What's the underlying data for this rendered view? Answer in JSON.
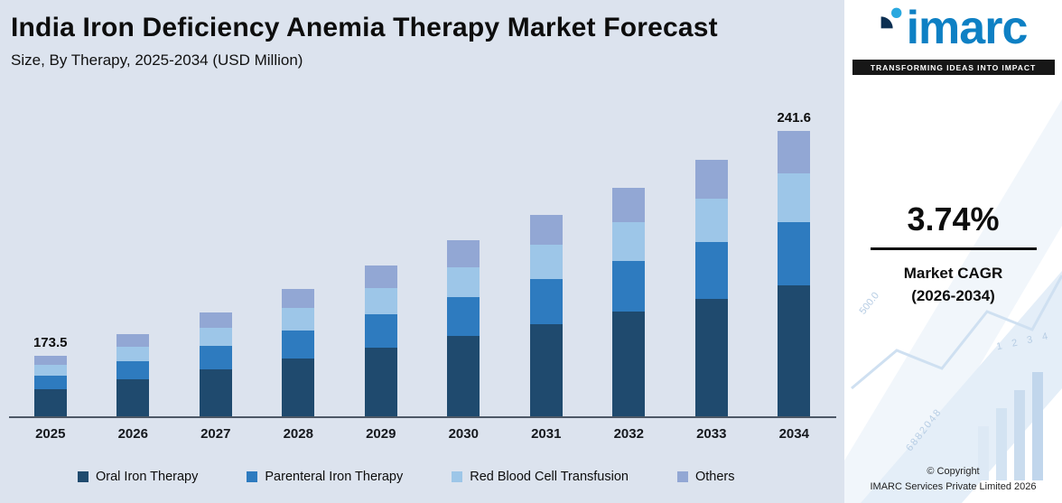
{
  "header": {
    "title": "India Iron Deficiency Anemia Therapy Market Forecast",
    "subtitle": "Size, By Therapy, 2025-2034 (USD Million)"
  },
  "chart_data": {
    "type": "bar",
    "stacked": true,
    "title": "India Iron Deficiency Anemia Therapy Market Forecast",
    "subtitle": "Size, By Therapy, 2025-2034 (USD Million)",
    "unit": "USD Million",
    "categories": [
      "2025",
      "2026",
      "2027",
      "2028",
      "2029",
      "2030",
      "2031",
      "2032",
      "2033",
      "2034"
    ],
    "series": [
      {
        "name": "Oral Iron Therapy",
        "color": "#1f4a6e",
        "values": [
          79.8,
          82.8,
          85.9,
          89.1,
          92.4,
          95.9,
          99.5,
          103.2,
          107.0,
          111.1
        ]
      },
      {
        "name": "Parenteral Iron Therapy",
        "color": "#2e7bbf",
        "values": [
          38.2,
          39.6,
          41.1,
          42.6,
          44.2,
          45.8,
          47.6,
          49.3,
          51.2,
          53.2
        ]
      },
      {
        "name": "Red Blood Cell Transfusion",
        "color": "#9dc6e8",
        "values": [
          29.5,
          30.6,
          31.7,
          32.9,
          34.2,
          35.4,
          36.8,
          38.1,
          39.6,
          41.1
        ]
      },
      {
        "name": "Others",
        "color": "#92a7d4",
        "values": [
          26.0,
          27.0,
          28.0,
          29.1,
          30.1,
          31.3,
          32.4,
          33.6,
          34.9,
          36.2
        ]
      }
    ],
    "totals": [
      173.5,
      180.0,
      186.7,
      193.7,
      200.9,
      208.4,
      216.2,
      224.3,
      232.7,
      241.6
    ],
    "data_labels": {
      "2025": "173.5",
      "2034": "241.6"
    },
    "xlabel": "",
    "ylabel": "",
    "grid": false,
    "legend_position": "bottom",
    "display_ylim": [
      155,
      245
    ]
  },
  "sidebar": {
    "logo_text": "imarc",
    "tagline": "TRANSFORMING IDEAS INTO IMPACT",
    "cagr": {
      "value": "3.74%",
      "line1": "Market CAGR",
      "line2": "(2026-2034)"
    },
    "decorative": [
      "500.0",
      "1 2 3 4",
      "6882048"
    ],
    "copyright": {
      "line1": "© Copyright",
      "line2": "IMARC Services Private Limited 2026"
    }
  }
}
